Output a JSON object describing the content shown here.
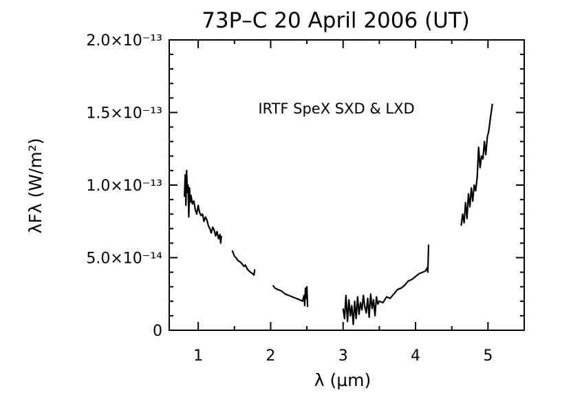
{
  "chart_data": {
    "type": "line",
    "title": "73P–C   20 April 2006 (UT)",
    "annotation": "IRTF SpeX SXD & LXD",
    "xlabel": "λ (μm)",
    "ylabel": "λFλ (W/m²)",
    "xlim": [
      0.6,
      5.5
    ],
    "ylim": [
      0,
      2e-13
    ],
    "xticks": [
      {
        "value": 1,
        "label": "1"
      },
      {
        "value": 2,
        "label": "2"
      },
      {
        "value": 3,
        "label": "3"
      },
      {
        "value": 4,
        "label": "4"
      },
      {
        "value": 5,
        "label": "5"
      }
    ],
    "yticks": [
      {
        "value": 0,
        "label": "0"
      },
      {
        "value": 5e-14,
        "label": "5.0×10⁻¹⁴"
      },
      {
        "value": 1e-13,
        "label": "1.0×10⁻¹³"
      },
      {
        "value": 1.5e-13,
        "label": "1.5×10⁻¹³"
      },
      {
        "value": 2e-13,
        "label": "2.0×10⁻¹³"
      }
    ],
    "grid": false,
    "legend": "none",
    "series": [
      {
        "x": [
          0.81,
          0.82,
          0.83,
          0.84,
          0.85,
          0.86,
          0.87,
          0.88,
          0.89,
          0.9,
          0.92,
          0.94,
          0.96,
          0.98,
          1.0,
          1.02,
          1.04,
          1.06,
          1.08,
          1.1,
          1.12,
          1.14,
          1.16,
          1.18,
          1.2,
          1.22,
          1.24,
          1.26,
          1.28,
          1.3,
          1.31,
          1.32
        ],
        "y": [
          9.2e-14,
          1.07e-13,
          8.6e-14,
          1.1e-13,
          9.5e-14,
          1e-13,
          7.8e-14,
          9.8e-14,
          8.8e-14,
          9.3e-14,
          8.7e-14,
          8.9e-14,
          8.3e-14,
          8e-14,
          8.6e-14,
          8.1e-14,
          7.9e-14,
          8e-14,
          7.5e-14,
          7.8e-14,
          7.6e-14,
          7.2e-14,
          7e-14,
          6.7e-14,
          7.1e-14,
          6.9e-14,
          6.5e-14,
          6.8e-14,
          6.3e-14,
          6.6e-14,
          6e-14,
          6.5e-14
        ]
      },
      {
        "x": [
          1.47,
          1.5,
          1.52,
          1.55,
          1.58,
          1.6,
          1.63,
          1.65,
          1.68,
          1.7,
          1.72,
          1.75,
          1.77,
          1.78
        ],
        "y": [
          5.5e-14,
          5.1e-14,
          5e-14,
          4.8e-14,
          4.7e-14,
          4.6e-14,
          4.4e-14,
          4.5e-14,
          4.2e-14,
          4.1e-14,
          4e-14,
          3.9e-14,
          3.8e-14,
          4.2e-14
        ]
      },
      {
        "x": [
          2.03,
          2.06,
          2.1,
          2.15,
          2.2,
          2.25,
          2.3,
          2.35,
          2.4,
          2.44,
          2.46,
          2.47,
          2.48,
          2.49,
          2.5,
          2.51
        ],
        "y": [
          3.1e-14,
          2.9e-14,
          2.8e-14,
          2.7e-14,
          2.5e-14,
          2.4e-14,
          2.3e-14,
          2.2e-14,
          2.1e-14,
          2e-14,
          2.4e-14,
          1.7e-14,
          2.9e-14,
          2.2e-14,
          3e-14,
          1.6e-14
        ]
      },
      {
        "x": [
          3.0,
          3.02,
          3.04,
          3.06,
          3.08,
          3.1,
          3.12,
          3.14,
          3.16,
          3.18,
          3.2,
          3.22,
          3.24,
          3.26,
          3.28,
          3.3,
          3.32,
          3.34,
          3.36,
          3.38,
          3.4,
          3.42,
          3.44,
          3.46,
          3.48,
          3.5,
          3.55,
          3.6,
          3.65,
          3.7,
          3.75,
          3.8,
          3.85,
          3.9,
          3.95,
          4.0,
          4.05,
          4.1,
          4.14,
          4.16,
          4.17,
          4.18
        ],
        "y": [
          1.5e-14,
          8e-15,
          2.4e-14,
          6e-15,
          2.1e-14,
          1e-14,
          1.7e-14,
          4e-15,
          2e-14,
          8e-15,
          2.3e-14,
          1.1e-14,
          1.9e-14,
          1.4e-14,
          2.4e-14,
          1.6e-14,
          1.2e-14,
          2.2e-14,
          9e-15,
          2.5e-14,
          1.5e-14,
          2.1e-14,
          1e-14,
          2.3e-14,
          1.8e-14,
          2e-14,
          1.9e-14,
          2.3e-14,
          2.2e-14,
          2.5e-14,
          2.8e-14,
          2.9e-14,
          3.1e-14,
          3.4e-14,
          3.5e-14,
          3.7e-14,
          3.9e-14,
          4e-14,
          4.1e-14,
          4.3e-14,
          4e-14,
          5.9e-14
        ]
      },
      {
        "x": [
          4.63,
          4.65,
          4.67,
          4.69,
          4.71,
          4.73,
          4.75,
          4.77,
          4.79,
          4.81,
          4.83,
          4.85,
          4.87,
          4.89,
          4.91,
          4.93,
          4.95,
          4.97,
          4.99,
          5.01,
          5.03,
          5.05,
          5.06
        ],
        "y": [
          7.2e-14,
          8e-14,
          7.4e-14,
          8.8e-14,
          7.7e-14,
          9.4e-14,
          8.5e-14,
          9.8e-14,
          8.9e-14,
          1e-13,
          9.6e-14,
          1.05e-13,
          1.26e-13,
          1.12e-13,
          1.2e-13,
          1.18e-13,
          1.3e-13,
          1.21e-13,
          1.33e-13,
          1.37e-13,
          1.45e-13,
          1.52e-13,
          1.56e-13
        ]
      }
    ]
  }
}
